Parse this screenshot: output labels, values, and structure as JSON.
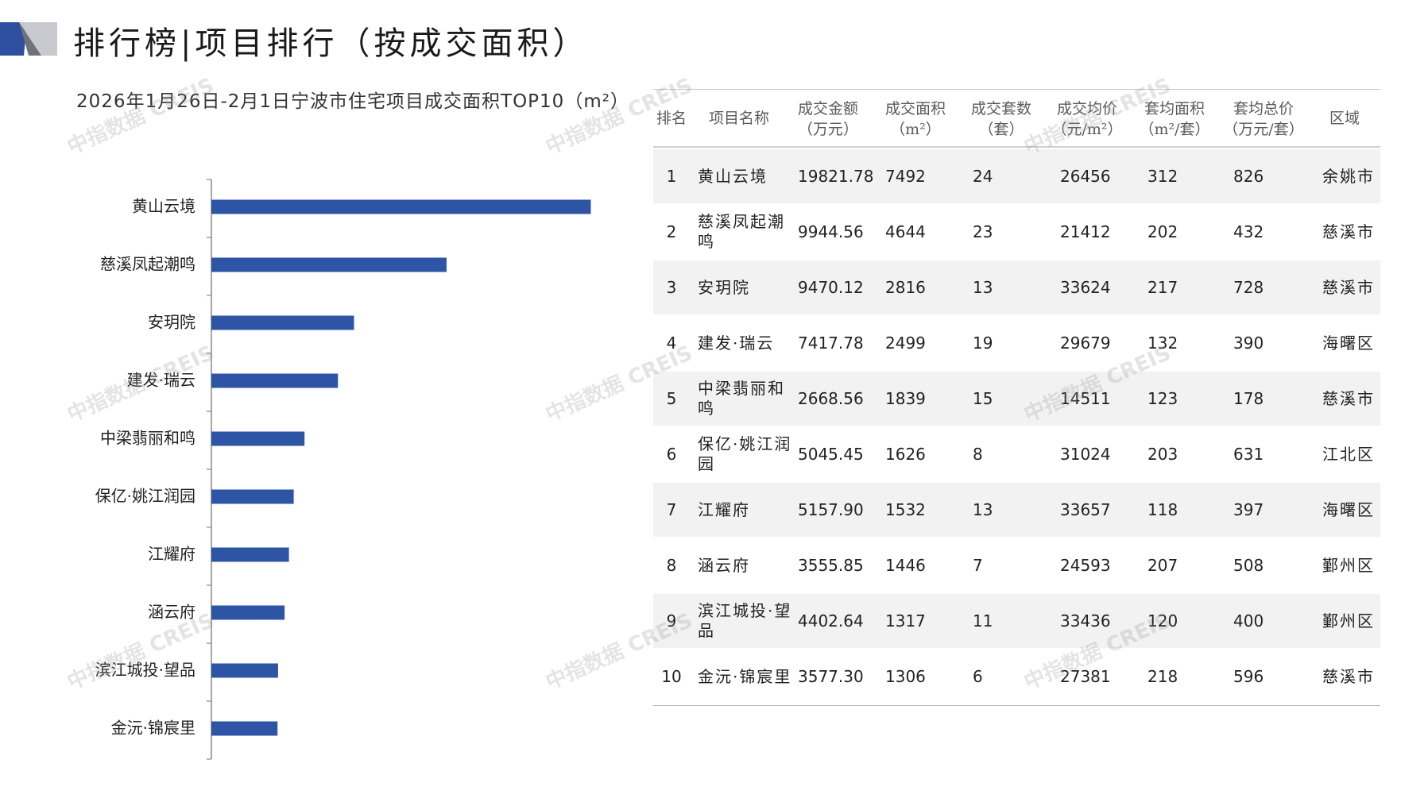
{
  "page_title": "排行榜|项目排行（按成交面积）",
  "watermark": "中指数据 CREIS",
  "chart_data": {
    "type": "bar",
    "orientation": "horizontal",
    "title": "2026年1月26日-2月1日宁波市住宅项目成交面积TOP10（m²）",
    "categories": [
      "黄山云境",
      "慈溪凤起潮鸣",
      "安玥院",
      "建发·瑞云",
      "中梁翡丽和鸣",
      "保亿·姚江润园",
      "江耀府",
      "涵云府",
      "滨江城投·望品",
      "金沅·锦宸里"
    ],
    "values": [
      7492,
      4644,
      2816,
      2499,
      1839,
      1626,
      1532,
      1446,
      1317,
      1306
    ],
    "bar_color": "#2e55a5",
    "axis_color": "#888888",
    "xlim": [
      0,
      7500
    ]
  },
  "table": {
    "headers": [
      {
        "l1": "排名",
        "l2": ""
      },
      {
        "l1": "项目名称",
        "l2": ""
      },
      {
        "l1": "成交金额",
        "l2": "（万元）"
      },
      {
        "l1": "成交面积",
        "l2": "（m²）"
      },
      {
        "l1": "成交套数",
        "l2": "（套）"
      },
      {
        "l1": "成交均价",
        "l2": "（元/m²）"
      },
      {
        "l1": "套均面积",
        "l2": "（m²/套）"
      },
      {
        "l1": "套均总价",
        "l2": "（万元/套）"
      },
      {
        "l1": "区域",
        "l2": ""
      }
    ],
    "rows": [
      {
        "rank": "1",
        "name": "黄山云境",
        "amount": "19821.78",
        "area": "7492",
        "units": "24",
        "avg_price": "26456",
        "avg_area": "312",
        "avg_total": "826",
        "region": "余姚市"
      },
      {
        "rank": "2",
        "name": "慈溪凤起潮鸣",
        "amount": "9944.56",
        "area": "4644",
        "units": "23",
        "avg_price": "21412",
        "avg_area": "202",
        "avg_total": "432",
        "region": "慈溪市"
      },
      {
        "rank": "3",
        "name": "安玥院",
        "amount": "9470.12",
        "area": "2816",
        "units": "13",
        "avg_price": "33624",
        "avg_area": "217",
        "avg_total": "728",
        "region": "慈溪市"
      },
      {
        "rank": "4",
        "name": "建发·瑞云",
        "amount": "7417.78",
        "area": "2499",
        "units": "19",
        "avg_price": "29679",
        "avg_area": "132",
        "avg_total": "390",
        "region": "海曙区"
      },
      {
        "rank": "5",
        "name": "中梁翡丽和鸣",
        "amount": "2668.56",
        "area": "1839",
        "units": "15",
        "avg_price": "14511",
        "avg_area": "123",
        "avg_total": "178",
        "region": "慈溪市"
      },
      {
        "rank": "6",
        "name": "保亿·姚江润园",
        "amount": "5045.45",
        "area": "1626",
        "units": "8",
        "avg_price": "31024",
        "avg_area": "203",
        "avg_total": "631",
        "region": "江北区"
      },
      {
        "rank": "7",
        "name": "江耀府",
        "amount": "5157.90",
        "area": "1532",
        "units": "13",
        "avg_price": "33657",
        "avg_area": "118",
        "avg_total": "397",
        "region": "海曙区"
      },
      {
        "rank": "8",
        "name": "涵云府",
        "amount": "3555.85",
        "area": "1446",
        "units": "7",
        "avg_price": "24593",
        "avg_area": "207",
        "avg_total": "508",
        "region": "鄞州区"
      },
      {
        "rank": "9",
        "name": "滨江城投·望品",
        "amount": "4402.64",
        "area": "1317",
        "units": "11",
        "avg_price": "33436",
        "avg_area": "120",
        "avg_total": "400",
        "region": "鄞州区"
      },
      {
        "rank": "10",
        "name": "金沅·锦宸里",
        "amount": "3577.30",
        "area": "1306",
        "units": "6",
        "avg_price": "27381",
        "avg_area": "218",
        "avg_total": "596",
        "region": "慈溪市"
      }
    ]
  }
}
